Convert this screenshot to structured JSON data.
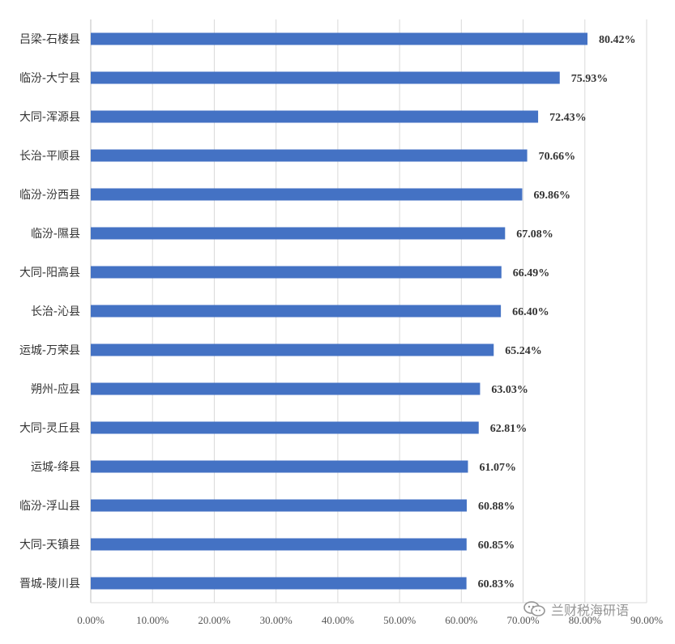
{
  "chart_data": {
    "type": "bar",
    "orientation": "horizontal",
    "categories": [
      "吕梁-石楼县",
      "临汾-大宁县",
      "大同-浑源县",
      "长治-平顺县",
      "临汾-汾西县",
      "临汾-隰县",
      "大同-阳高县",
      "长治-沁县",
      "运城-万荣县",
      "朔州-应县",
      "大同-灵丘县",
      "运城-绛县",
      "临汾-浮山县",
      "大同-天镇县",
      "晋城-陵川县"
    ],
    "values": [
      80.42,
      75.93,
      72.43,
      70.66,
      69.86,
      67.08,
      66.49,
      66.4,
      65.24,
      63.03,
      62.81,
      61.07,
      60.88,
      60.85,
      60.83
    ],
    "data_labels": [
      "80.42%",
      "75.93%",
      "72.43%",
      "70.66%",
      "69.86%",
      "67.08%",
      "66.49%",
      "66.40%",
      "65.24%",
      "63.03%",
      "62.81%",
      "61.07%",
      "60.88%",
      "60.85%",
      "60.83%"
    ],
    "x_ticks": [
      "0.00%",
      "10.00%",
      "20.00%",
      "30.00%",
      "40.00%",
      "50.00%",
      "60.00%",
      "70.00%",
      "80.00%",
      "90.00%"
    ],
    "xlim": [
      0,
      90
    ],
    "grid": true,
    "bar_color": "#4472C4",
    "title": "",
    "xlabel": "",
    "ylabel": ""
  },
  "watermark": {
    "icon": "wechat-icon",
    "text": "兰财税海研语"
  }
}
